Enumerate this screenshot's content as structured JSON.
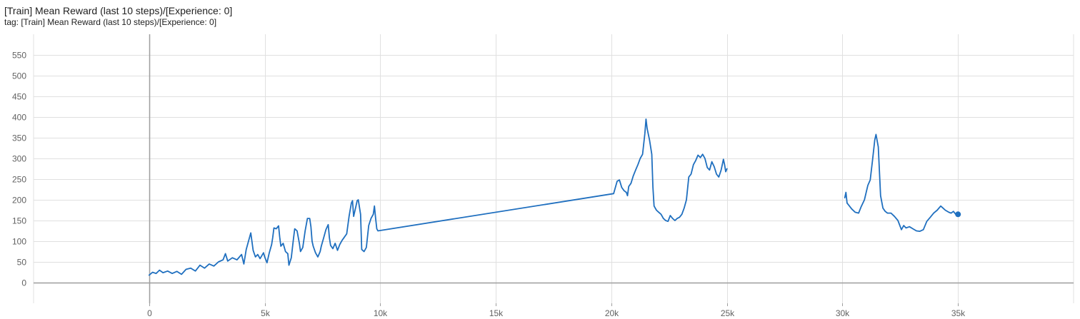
{
  "header": {
    "title": "[Train] Mean Reward (last 10 steps)/[Experience: 0]",
    "tag": "tag: [Train] Mean Reward (last 10 steps)/[Experience: 0]"
  },
  "colors": {
    "series": "#1f6fbf",
    "grid": "#e0e0e0",
    "zero_axis": "#9e9e9e",
    "tick_text": "#616161"
  },
  "chart_data": {
    "type": "line",
    "title": "[Train] Mean Reward (last 10 steps)/[Experience: 0]",
    "xlabel": "",
    "ylabel": "",
    "xlim": [
      -5000,
      40000
    ],
    "ylim": [
      -50,
      600
    ],
    "x_ticks": [
      0,
      5000,
      10000,
      15000,
      20000,
      25000,
      30000,
      35000
    ],
    "x_tick_labels": [
      "0",
      "5k",
      "10k",
      "15k",
      "20k",
      "25k",
      "30k",
      "35k"
    ],
    "y_ticks": [
      0,
      50,
      100,
      150,
      200,
      250,
      300,
      350,
      400,
      450,
      500,
      550
    ],
    "y_tick_labels": [
      "0",
      "50",
      "100",
      "150",
      "200",
      "250",
      "300",
      "350",
      "400",
      "450",
      "500",
      "550"
    ],
    "grid": true,
    "legend": "none",
    "series": [
      {
        "segments": [
          [
            [
              0,
              18
            ],
            [
              150,
              25
            ],
            [
              300,
              22
            ],
            [
              450,
              30
            ],
            [
              600,
              24
            ],
            [
              800,
              28
            ],
            [
              1000,
              22
            ],
            [
              1200,
              27
            ],
            [
              1400,
              20
            ],
            [
              1600,
              32
            ],
            [
              1800,
              35
            ],
            [
              2000,
              28
            ],
            [
              2200,
              42
            ],
            [
              2400,
              35
            ],
            [
              2600,
              45
            ],
            [
              2800,
              40
            ],
            [
              3000,
              50
            ],
            [
              3200,
              55
            ],
            [
              3300,
              70
            ],
            [
              3400,
              52
            ],
            [
              3600,
              60
            ],
            [
              3800,
              55
            ],
            [
              4000,
              68
            ],
            [
              4100,
              45
            ],
            [
              4200,
              80
            ],
            [
              4300,
              100
            ],
            [
              4400,
              120
            ],
            [
              4500,
              78
            ],
            [
              4600,
              62
            ],
            [
              4700,
              68
            ],
            [
              4800,
              58
            ],
            [
              4950,
              72
            ],
            [
              5000,
              62
            ],
            [
              5100,
              48
            ],
            [
              5200,
              72
            ],
            [
              5300,
              92
            ],
            [
              5350,
              110
            ],
            [
              5400,
              132
            ],
            [
              5500,
              130
            ],
            [
              5600,
              137
            ],
            [
              5650,
              110
            ],
            [
              5700,
              88
            ],
            [
              5800,
              95
            ],
            [
              5900,
              75
            ],
            [
              6000,
              70
            ],
            [
              6050,
              42
            ],
            [
              6150,
              60
            ],
            [
              6250,
              108
            ],
            [
              6300,
              130
            ],
            [
              6400,
              125
            ],
            [
              6500,
              95
            ],
            [
              6550,
              75
            ],
            [
              6650,
              85
            ],
            [
              6750,
              125
            ],
            [
              6850,
              155
            ],
            [
              6950,
              155
            ],
            [
              7000,
              135
            ],
            [
              7050,
              100
            ],
            [
              7100,
              88
            ],
            [
              7200,
              72
            ],
            [
              7300,
              62
            ],
            [
              7400,
              75
            ],
            [
              7450,
              88
            ],
            [
              7550,
              108
            ],
            [
              7650,
              128
            ],
            [
              7750,
              140
            ],
            [
              7800,
              108
            ],
            [
              7850,
              90
            ],
            [
              7950,
              82
            ],
            [
              8050,
              95
            ],
            [
              8150,
              78
            ],
            [
              8250,
              92
            ],
            [
              8350,
              102
            ],
            [
              8450,
              110
            ],
            [
              8550,
              118
            ],
            [
              8650,
              160
            ],
            [
              8750,
              192
            ],
            [
              8800,
              198
            ],
            [
              8850,
              160
            ],
            [
              8950,
              185
            ],
            [
              9000,
              198
            ],
            [
              9050,
              200
            ],
            [
              9150,
              165
            ],
            [
              9200,
              80
            ],
            [
              9300,
              75
            ],
            [
              9400,
              85
            ],
            [
              9500,
              138
            ],
            [
              9600,
              155
            ],
            [
              9700,
              165
            ],
            [
              9750,
              185
            ],
            [
              9800,
              155
            ],
            [
              9850,
              130
            ],
            [
              9900,
              125
            ],
            [
              20100,
              215
            ],
            [
              20250,
              245
            ],
            [
              20350,
              248
            ],
            [
              20450,
              230
            ],
            [
              20550,
              222
            ],
            [
              20650,
              218
            ],
            [
              20700,
              210
            ],
            [
              20750,
              232
            ],
            [
              20850,
              240
            ],
            [
              20950,
              258
            ],
            [
              21050,
              272
            ],
            [
              21150,
              285
            ],
            [
              21250,
              300
            ],
            [
              21350,
              310
            ],
            [
              21450,
              360
            ],
            [
              21500,
              395
            ],
            [
              21550,
              372
            ],
            [
              21650,
              345
            ],
            [
              21750,
              310
            ],
            [
              21800,
              230
            ],
            [
              21850,
              185
            ],
            [
              21950,
              175
            ],
            [
              22050,
              170
            ],
            [
              22150,
              165
            ],
            [
              22250,
              155
            ],
            [
              22350,
              150
            ],
            [
              22450,
              148
            ],
            [
              22550,
              162
            ],
            [
              22650,
              155
            ],
            [
              22750,
              150
            ],
            [
              22850,
              155
            ],
            [
              22950,
              158
            ],
            [
              23050,
              165
            ],
            [
              23150,
              180
            ],
            [
              23250,
              200
            ],
            [
              23350,
              255
            ],
            [
              23450,
              262
            ],
            [
              23550,
              285
            ],
            [
              23650,
              295
            ],
            [
              23750,
              308
            ],
            [
              23850,
              302
            ],
            [
              23950,
              310
            ],
            [
              24050,
              300
            ],
            [
              24150,
              278
            ],
            [
              24250,
              272
            ],
            [
              24350,
              292
            ],
            [
              24450,
              280
            ],
            [
              24550,
              262
            ],
            [
              24650,
              255
            ],
            [
              24750,
              272
            ],
            [
              24850,
              298
            ],
            [
              24900,
              285
            ],
            [
              24950,
              268
            ],
            [
              25000,
              275
            ]
          ],
          [
            [
              30100,
              205
            ],
            [
              30150,
              218
            ],
            [
              30200,
              192
            ],
            [
              30300,
              185
            ],
            [
              30400,
              178
            ],
            [
              30550,
              170
            ],
            [
              30700,
              168
            ],
            [
              30800,
              182
            ],
            [
              30950,
              200
            ],
            [
              31100,
              235
            ],
            [
              31200,
              248
            ],
            [
              31300,
              295
            ],
            [
              31400,
              345
            ],
            [
              31450,
              358
            ],
            [
              31550,
              328
            ],
            [
              31650,
              210
            ],
            [
              31750,
              180
            ],
            [
              31850,
              172
            ],
            [
              31950,
              168
            ],
            [
              32100,
              168
            ],
            [
              32250,
              160
            ],
            [
              32400,
              150
            ],
            [
              32550,
              128
            ],
            [
              32650,
              138
            ],
            [
              32750,
              132
            ],
            [
              32900,
              135
            ],
            [
              33050,
              130
            ],
            [
              33200,
              125
            ],
            [
              33350,
              124
            ],
            [
              33500,
              128
            ],
            [
              33650,
              148
            ],
            [
              33800,
              158
            ],
            [
              33950,
              168
            ],
            [
              34100,
              175
            ],
            [
              34250,
              185
            ],
            [
              34350,
              180
            ],
            [
              34450,
              175
            ],
            [
              34600,
              170
            ],
            [
              34700,
              168
            ],
            [
              34800,
              172
            ],
            [
              34900,
              165
            ],
            [
              35000,
              165
            ]
          ]
        ]
      }
    ]
  }
}
